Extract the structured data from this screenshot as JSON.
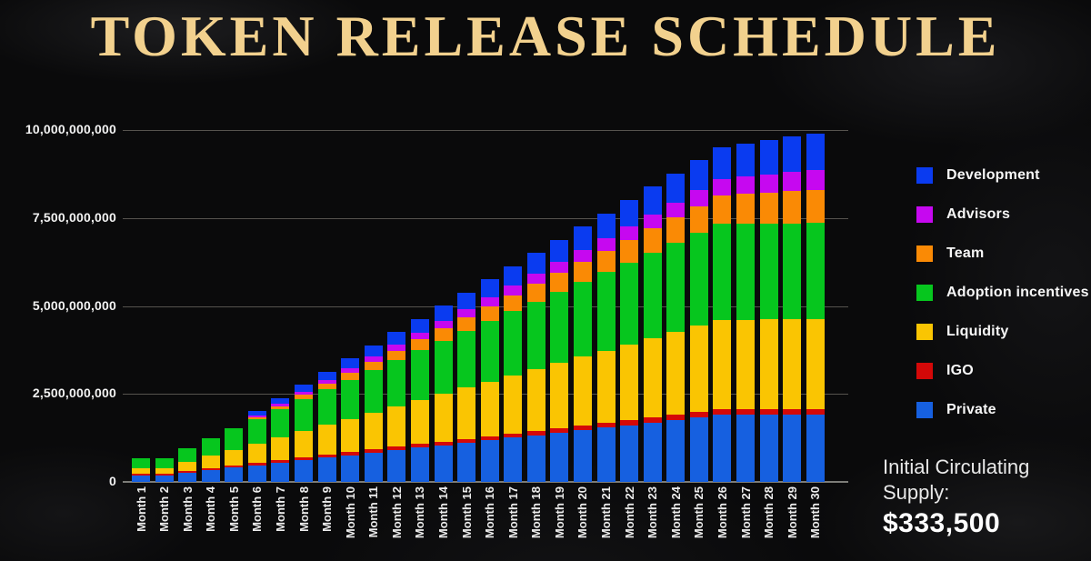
{
  "title": "TOKEN RELEASE SCHEDULE",
  "footer": {
    "label": "Initial Circulating Supply:",
    "value": "$333,500"
  },
  "chart_data": {
    "type": "bar",
    "stacked": true,
    "title": "TOKEN RELEASE SCHEDULE",
    "values_unit": "million tokens (estimated from bar heights)",
    "ylim": [
      0,
      10000
    ],
    "grid": "horizontal",
    "legend_position": "right",
    "y_ticks": [
      {
        "label": "0",
        "value": 0
      },
      {
        "label": "2,500,000,000",
        "value": 2500
      },
      {
        "label": "5,000,000,000",
        "value": 5000
      },
      {
        "label": "7,500,000,000",
        "value": 7500
      },
      {
        "label": "10,000,000,000",
        "value": 10000
      }
    ],
    "categories": [
      "Month 1",
      "Month 2",
      "Month 3",
      "Month 4",
      "Month 5",
      "Month 6",
      "Month 7",
      "Month 8",
      "Month 9",
      "Month 10",
      "Month 11",
      "Month 12",
      "Month 13",
      "Month 14",
      "Month 15",
      "Month 16",
      "Month 17",
      "Month 18",
      "Month 19",
      "Month 20",
      "Month 21",
      "Month 22",
      "Month 23",
      "Month 24",
      "Month 25",
      "Month 26",
      "Month 27",
      "Month 28",
      "Month 29",
      "Month 30"
    ],
    "stack_order_bottom_to_top": [
      "Private",
      "IGO",
      "Liquidity",
      "Adoption incentives",
      "Team",
      "Advisors",
      "Development"
    ],
    "series": [
      {
        "key": "development",
        "name": "Development",
        "color": "#0a3bf0",
        "values": [
          0,
          0,
          0,
          0,
          0,
          130,
          168,
          206,
          244,
          282,
          320,
          358,
          396,
          434,
          472,
          510,
          548,
          586,
          624,
          662,
          700,
          738,
          776,
          814,
          852,
          890,
          928,
          966,
          1004,
          1040
        ]
      },
      {
        "key": "advisors",
        "name": "Advisors",
        "color": "#c608f0",
        "values": [
          0,
          0,
          0,
          0,
          0,
          35,
          57,
          79,
          101,
          123,
          145,
          167,
          189,
          211,
          233,
          255,
          277,
          299,
          321,
          343,
          365,
          387,
          409,
          431,
          453,
          475,
          497,
          519,
          541,
          560
        ]
      },
      {
        "key": "team",
        "name": "Team",
        "color": "#fa8a05",
        "values": [
          0,
          0,
          0,
          0,
          0,
          50,
          88,
          125,
          163,
          200,
          238,
          275,
          313,
          350,
          388,
          425,
          463,
          500,
          538,
          575,
          613,
          650,
          688,
          725,
          763,
          800,
          838,
          875,
          913,
          950
        ]
      },
      {
        "key": "adoption",
        "name": "Adoption incentives",
        "color": "#06c61e",
        "values": [
          290,
          290,
          392,
          494,
          596,
          698,
          800,
          902,
          1004,
          1106,
          1208,
          1310,
          1412,
          1514,
          1616,
          1718,
          1820,
          1922,
          2024,
          2126,
          2228,
          2330,
          2432,
          2534,
          2636,
          2730,
          2730,
          2730,
          2730,
          2730
        ]
      },
      {
        "key": "liquidity",
        "name": "Liquidity",
        "color": "#fac502",
        "values": [
          150,
          150,
          250,
          350,
          450,
          550,
          650,
          750,
          850,
          950,
          1050,
          1150,
          1250,
          1350,
          1450,
          1550,
          1650,
          1750,
          1850,
          1950,
          2050,
          2150,
          2250,
          2350,
          2450,
          2550,
          2550,
          2550,
          2550,
          2550
        ]
      },
      {
        "key": "igo",
        "name": "IGO",
        "color": "#d40808",
        "values": [
          50,
          50,
          55,
          59,
          64,
          68,
          73,
          77,
          82,
          86,
          91,
          95,
          100,
          104,
          109,
          113,
          118,
          122,
          127,
          131,
          136,
          140,
          145,
          149,
          154,
          158,
          163,
          167,
          172,
          175
        ]
      },
      {
        "key": "private",
        "name": "Private",
        "color": "#1660e0",
        "values": [
          190,
          190,
          261,
          333,
          404,
          475,
          546,
          618,
          689,
          760,
          831,
          903,
          974,
          1045,
          1116,
          1188,
          1259,
          1330,
          1401,
          1473,
          1544,
          1615,
          1686,
          1758,
          1829,
          1900,
          1900,
          1900,
          1900,
          1900
        ]
      }
    ]
  }
}
